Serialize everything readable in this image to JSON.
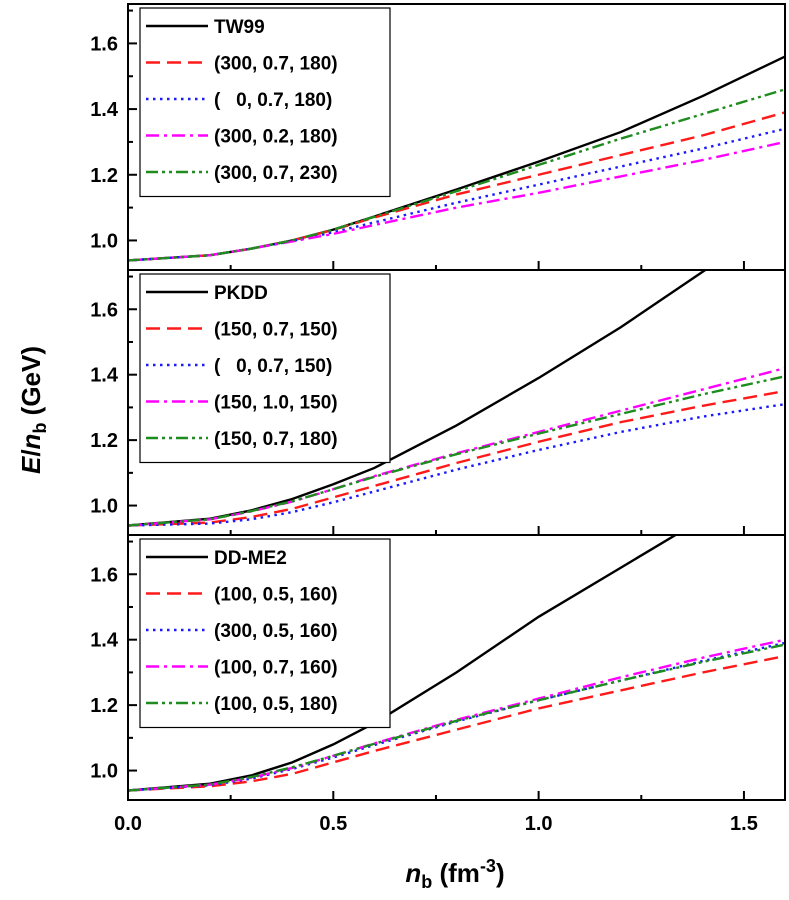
{
  "chart_data": {
    "type": "line",
    "shared_x": {
      "label_var": "n",
      "label_sub": "b",
      "label_unit_pre": " (fm",
      "label_unit_sup": "-3",
      "label_unit_post": ")",
      "xlim": [
        0,
        1.6
      ],
      "ticks": [
        0.0,
        0.5,
        1.0,
        1.5
      ],
      "tick_labels": [
        "0.0",
        "0.5",
        "1.0",
        "1.5"
      ]
    },
    "shared_y": {
      "label_var": "E",
      "label_slash": "/",
      "label_var2": "n",
      "label_sub": "b",
      "label_unit": " (GeV)",
      "ylim": [
        0.91,
        1.72
      ],
      "ticks": [
        1.0,
        1.2,
        1.4,
        1.6
      ],
      "tick_labels": [
        "1.0",
        "1.2",
        "1.4",
        "1.6"
      ]
    },
    "panels": [
      {
        "legend_position": "top-left",
        "series": [
          {
            "name": "TW99",
            "color": "#000000",
            "style": "solid",
            "x": [
              0,
              0.2,
              0.3,
              0.4,
              0.5,
              0.6,
              0.8,
              1.0,
              1.2,
              1.4,
              1.6
            ],
            "y": [
              0.939,
              0.955,
              0.975,
              1.0,
              1.033,
              1.073,
              1.155,
              1.24,
              1.33,
              1.44,
              1.56
            ]
          },
          {
            "name": "(300, 0.7, 180)",
            "color": "#ff1a1a",
            "style": "dash",
            "x": [
              0,
              0.2,
              0.3,
              0.4,
              0.5,
              0.6,
              0.8,
              1.0,
              1.2,
              1.4,
              1.6
            ],
            "y": [
              0.939,
              0.955,
              0.975,
              1.0,
              1.032,
              1.07,
              1.14,
              1.2,
              1.26,
              1.32,
              1.39
            ]
          },
          {
            "name": "(   0, 0.7, 180)",
            "color": "#1a1aff",
            "style": "dot",
            "x": [
              0,
              0.2,
              0.3,
              0.4,
              0.5,
              0.6,
              0.8,
              1.0,
              1.2,
              1.4,
              1.6
            ],
            "y": [
              0.939,
              0.955,
              0.975,
              0.998,
              1.025,
              1.055,
              1.115,
              1.17,
              1.225,
              1.28,
              1.34
            ]
          },
          {
            "name": "(300, 0.2, 180)",
            "color": "#ff00ff",
            "style": "dashdot",
            "x": [
              0,
              0.2,
              0.3,
              0.4,
              0.5,
              0.6,
              0.8,
              1.0,
              1.2,
              1.4,
              1.6
            ],
            "y": [
              0.939,
              0.955,
              0.975,
              0.997,
              1.02,
              1.047,
              1.1,
              1.145,
              1.195,
              1.245,
              1.3
            ]
          },
          {
            "name": "(300, 0.7, 230)",
            "color": "#1e8c1e",
            "style": "dashdotdot",
            "x": [
              0,
              0.2,
              0.3,
              0.4,
              0.5,
              0.6,
              0.8,
              1.0,
              1.2,
              1.4,
              1.6
            ],
            "y": [
              0.939,
              0.955,
              0.975,
              1.0,
              1.033,
              1.072,
              1.15,
              1.23,
              1.31,
              1.385,
              1.46
            ]
          }
        ]
      },
      {
        "legend_position": "top-left",
        "series": [
          {
            "name": "PKDD",
            "color": "#000000",
            "style": "solid",
            "x": [
              0,
              0.2,
              0.3,
              0.4,
              0.5,
              0.6,
              0.8,
              1.0,
              1.2,
              1.4,
              1.5
            ],
            "y": [
              0.939,
              0.96,
              0.985,
              1.02,
              1.065,
              1.115,
              1.245,
              1.39,
              1.545,
              1.715,
              1.8
            ]
          },
          {
            "name": "(150, 0.7, 150)",
            "color": "#ff1a1a",
            "style": "dash",
            "x": [
              0,
              0.2,
              0.3,
              0.4,
              0.5,
              0.6,
              0.8,
              1.0,
              1.2,
              1.4,
              1.6
            ],
            "y": [
              0.939,
              0.948,
              0.965,
              0.99,
              1.025,
              1.06,
              1.13,
              1.195,
              1.255,
              1.305,
              1.35
            ]
          },
          {
            "name": "(   0, 0.7, 150)",
            "color": "#1a1aff",
            "style": "dot",
            "x": [
              0,
              0.2,
              0.3,
              0.4,
              0.5,
              0.6,
              0.8,
              1.0,
              1.2,
              1.4,
              1.6
            ],
            "y": [
              0.939,
              0.945,
              0.958,
              0.98,
              1.01,
              1.043,
              1.11,
              1.17,
              1.225,
              1.272,
              1.31
            ]
          },
          {
            "name": "(150, 1.0, 150)",
            "color": "#ff00ff",
            "style": "dashdot",
            "x": [
              0,
              0.2,
              0.3,
              0.4,
              0.5,
              0.6,
              0.8,
              1.0,
              1.2,
              1.4,
              1.6
            ],
            "y": [
              0.939,
              0.958,
              0.982,
              1.012,
              1.05,
              1.09,
              1.16,
              1.225,
              1.29,
              1.355,
              1.42
            ]
          },
          {
            "name": "(150, 0.7, 180)",
            "color": "#1e8c1e",
            "style": "dashdotdot",
            "x": [
              0,
              0.2,
              0.3,
              0.4,
              0.5,
              0.6,
              0.8,
              1.0,
              1.2,
              1.4,
              1.6
            ],
            "y": [
              0.939,
              0.958,
              0.983,
              1.013,
              1.05,
              1.088,
              1.157,
              1.22,
              1.28,
              1.34,
              1.395
            ]
          }
        ]
      },
      {
        "legend_position": "top-left",
        "series": [
          {
            "name": "DD-ME2",
            "color": "#000000",
            "style": "solid",
            "x": [
              0,
              0.2,
              0.3,
              0.4,
              0.5,
              0.6,
              0.8,
              1.0,
              1.2,
              1.36
            ],
            "y": [
              0.939,
              0.96,
              0.985,
              1.025,
              1.08,
              1.145,
              1.3,
              1.47,
              1.62,
              1.74
            ]
          },
          {
            "name": "(100, 0.5, 160)",
            "color": "#ff1a1a",
            "style": "dash",
            "x": [
              0,
              0.2,
              0.3,
              0.4,
              0.5,
              0.6,
              0.8,
              1.0,
              1.2,
              1.4,
              1.6
            ],
            "y": [
              0.939,
              0.952,
              0.967,
              0.99,
              1.025,
              1.06,
              1.125,
              1.19,
              1.245,
              1.3,
              1.35
            ]
          },
          {
            "name": "(300, 0.5, 160)",
            "color": "#1a1aff",
            "style": "dot",
            "x": [
              0,
              0.2,
              0.3,
              0.4,
              0.5,
              0.6,
              0.8,
              1.0,
              1.2,
              1.4,
              1.6
            ],
            "y": [
              0.939,
              0.955,
              0.975,
              1.005,
              1.04,
              1.078,
              1.15,
              1.215,
              1.275,
              1.335,
              1.39
            ]
          },
          {
            "name": "(100, 0.7, 160)",
            "color": "#ff00ff",
            "style": "dashdot",
            "x": [
              0,
              0.2,
              0.3,
              0.4,
              0.5,
              0.6,
              0.8,
              1.0,
              1.2,
              1.4,
              1.6
            ],
            "y": [
              0.939,
              0.957,
              0.978,
              1.008,
              1.045,
              1.083,
              1.155,
              1.22,
              1.285,
              1.345,
              1.4
            ]
          },
          {
            "name": "(100, 0.5, 180)",
            "color": "#1e8c1e",
            "style": "dashdotdot",
            "x": [
              0,
              0.2,
              0.3,
              0.4,
              0.5,
              0.6,
              0.8,
              1.0,
              1.2,
              1.4,
              1.6
            ],
            "y": [
              0.939,
              0.957,
              0.98,
              1.01,
              1.045,
              1.082,
              1.152,
              1.215,
              1.275,
              1.332,
              1.385
            ]
          }
        ]
      }
    ]
  }
}
